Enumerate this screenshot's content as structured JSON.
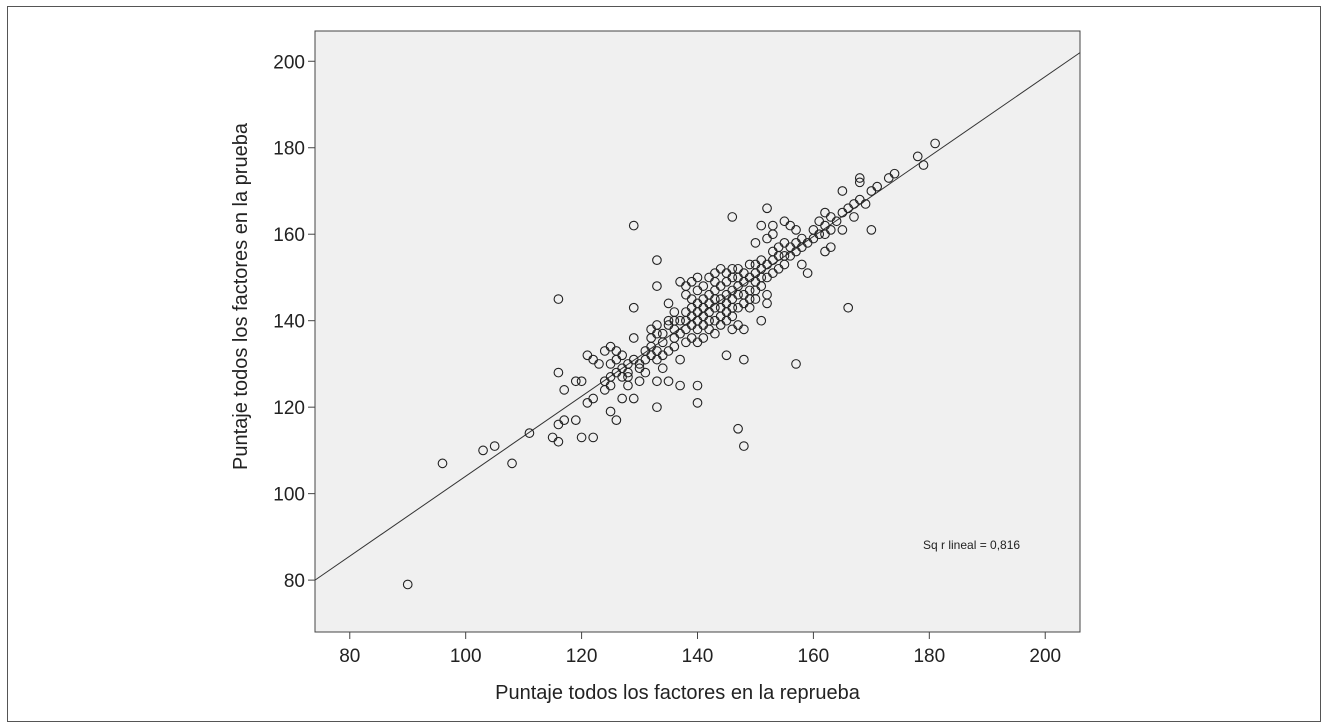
{
  "chart_data": {
    "type": "scatter",
    "title": "",
    "xlabel": "Puntaje todos los factores en la reprueba",
    "ylabel": "Puntaje todos los factores en la prueba",
    "xlim": [
      74,
      206
    ],
    "ylim": [
      68,
      207
    ],
    "x_ticks": [
      80,
      100,
      120,
      140,
      160,
      180,
      200
    ],
    "y_ticks": [
      80,
      100,
      120,
      140,
      160,
      180,
      200
    ],
    "grid": false,
    "plot_background": "#f0f0f0",
    "marker": "open-circle",
    "marker_color": "#222222",
    "fit_line": {
      "type": "linear",
      "x": [
        74,
        206
      ],
      "y": [
        80,
        202
      ]
    },
    "annotation": "Sq r lineal = 0,816",
    "points": [
      [
        90,
        79
      ],
      [
        96,
        107
      ],
      [
        103,
        110
      ],
      [
        105,
        111
      ],
      [
        108,
        107
      ],
      [
        111,
        114
      ],
      [
        115,
        113
      ],
      [
        116,
        112
      ],
      [
        116,
        116
      ],
      [
        116,
        128
      ],
      [
        116,
        145
      ],
      [
        117,
        124
      ],
      [
        117,
        117
      ],
      [
        119,
        117
      ],
      [
        119,
        126
      ],
      [
        120,
        126
      ],
      [
        120,
        113
      ],
      [
        121,
        121
      ],
      [
        121,
        132
      ],
      [
        122,
        113
      ],
      [
        122,
        122
      ],
      [
        122,
        131
      ],
      [
        123,
        130
      ],
      [
        124,
        124
      ],
      [
        124,
        126
      ],
      [
        124,
        133
      ],
      [
        125,
        125
      ],
      [
        125,
        127
      ],
      [
        125,
        130
      ],
      [
        125,
        134
      ],
      [
        125,
        119
      ],
      [
        126,
        117
      ],
      [
        126,
        128
      ],
      [
        126,
        131
      ],
      [
        126,
        133
      ],
      [
        127,
        129
      ],
      [
        127,
        132
      ],
      [
        127,
        127
      ],
      [
        127,
        122
      ],
      [
        128,
        125
      ],
      [
        128,
        130
      ],
      [
        128,
        128
      ],
      [
        128,
        127
      ],
      [
        129,
        122
      ],
      [
        129,
        143
      ],
      [
        129,
        136
      ],
      [
        129,
        162
      ],
      [
        129,
        131
      ],
      [
        130,
        130
      ],
      [
        130,
        129
      ],
      [
        130,
        126
      ],
      [
        131,
        131
      ],
      [
        131,
        133
      ],
      [
        131,
        128
      ],
      [
        132,
        132
      ],
      [
        132,
        134
      ],
      [
        132,
        136
      ],
      [
        132,
        138
      ],
      [
        133,
        120
      ],
      [
        133,
        126
      ],
      [
        133,
        131
      ],
      [
        133,
        133
      ],
      [
        133,
        137
      ],
      [
        133,
        139
      ],
      [
        133,
        148
      ],
      [
        133,
        154
      ],
      [
        134,
        129
      ],
      [
        134,
        132
      ],
      [
        134,
        135
      ],
      [
        134,
        137
      ],
      [
        135,
        126
      ],
      [
        135,
        133
      ],
      [
        135,
        139
      ],
      [
        135,
        140
      ],
      [
        135,
        144
      ],
      [
        136,
        134
      ],
      [
        136,
        136
      ],
      [
        136,
        138
      ],
      [
        136,
        140
      ],
      [
        136,
        142
      ],
      [
        137,
        125
      ],
      [
        137,
        131
      ],
      [
        137,
        137
      ],
      [
        137,
        140
      ],
      [
        137,
        149
      ],
      [
        138,
        135
      ],
      [
        138,
        138
      ],
      [
        138,
        140
      ],
      [
        138,
        142
      ],
      [
        138,
        146
      ],
      [
        138,
        148
      ],
      [
        139,
        136
      ],
      [
        139,
        139
      ],
      [
        139,
        141
      ],
      [
        139,
        143
      ],
      [
        139,
        145
      ],
      [
        139,
        149
      ],
      [
        140,
        121
      ],
      [
        140,
        125
      ],
      [
        140,
        135
      ],
      [
        140,
        138
      ],
      [
        140,
        140
      ],
      [
        140,
        142
      ],
      [
        140,
        144
      ],
      [
        140,
        147
      ],
      [
        140,
        150
      ],
      [
        141,
        136
      ],
      [
        141,
        139
      ],
      [
        141,
        141
      ],
      [
        141,
        143
      ],
      [
        141,
        145
      ],
      [
        141,
        148
      ],
      [
        142,
        138
      ],
      [
        142,
        140
      ],
      [
        142,
        142
      ],
      [
        142,
        144
      ],
      [
        142,
        146
      ],
      [
        142,
        150
      ],
      [
        143,
        137
      ],
      [
        143,
        140
      ],
      [
        143,
        143
      ],
      [
        143,
        145
      ],
      [
        143,
        147
      ],
      [
        143,
        149
      ],
      [
        143,
        151
      ],
      [
        144,
        139
      ],
      [
        144,
        141
      ],
      [
        144,
        143
      ],
      [
        144,
        145
      ],
      [
        144,
        148
      ],
      [
        144,
        152
      ],
      [
        145,
        132
      ],
      [
        145,
        140
      ],
      [
        145,
        142
      ],
      [
        145,
        144
      ],
      [
        145,
        146
      ],
      [
        145,
        149
      ],
      [
        145,
        151
      ],
      [
        146,
        138
      ],
      [
        146,
        141
      ],
      [
        146,
        143
      ],
      [
        146,
        145
      ],
      [
        146,
        147
      ],
      [
        146,
        150
      ],
      [
        146,
        152
      ],
      [
        146,
        164
      ],
      [
        147,
        115
      ],
      [
        147,
        139
      ],
      [
        147,
        143
      ],
      [
        147,
        146
      ],
      [
        147,
        148
      ],
      [
        147,
        150
      ],
      [
        147,
        152
      ],
      [
        148,
        111
      ],
      [
        148,
        131
      ],
      [
        148,
        138
      ],
      [
        148,
        144
      ],
      [
        148,
        146
      ],
      [
        148,
        149
      ],
      [
        148,
        151
      ],
      [
        149,
        143
      ],
      [
        149,
        145
      ],
      [
        149,
        147
      ],
      [
        149,
        150
      ],
      [
        149,
        153
      ],
      [
        150,
        145
      ],
      [
        150,
        147
      ],
      [
        150,
        149
      ],
      [
        150,
        151
      ],
      [
        150,
        153
      ],
      [
        150,
        158
      ],
      [
        151,
        140
      ],
      [
        151,
        148
      ],
      [
        151,
        150
      ],
      [
        151,
        152
      ],
      [
        151,
        154
      ],
      [
        151,
        162
      ],
      [
        152,
        144
      ],
      [
        152,
        146
      ],
      [
        152,
        150
      ],
      [
        152,
        153
      ],
      [
        152,
        159
      ],
      [
        152,
        166
      ],
      [
        153,
        151
      ],
      [
        153,
        154
      ],
      [
        153,
        156
      ],
      [
        153,
        160
      ],
      [
        153,
        162
      ],
      [
        154,
        152
      ],
      [
        154,
        155
      ],
      [
        154,
        157
      ],
      [
        155,
        153
      ],
      [
        155,
        155
      ],
      [
        155,
        158
      ],
      [
        155,
        163
      ],
      [
        156,
        155
      ],
      [
        156,
        157
      ],
      [
        156,
        162
      ],
      [
        157,
        130
      ],
      [
        157,
        156
      ],
      [
        157,
        158
      ],
      [
        157,
        161
      ],
      [
        158,
        153
      ],
      [
        158,
        157
      ],
      [
        158,
        159
      ],
      [
        159,
        151
      ],
      [
        159,
        158
      ],
      [
        160,
        159
      ],
      [
        160,
        161
      ],
      [
        161,
        160
      ],
      [
        161,
        163
      ],
      [
        162,
        156
      ],
      [
        162,
        160
      ],
      [
        162,
        162
      ],
      [
        162,
        165
      ],
      [
        163,
        157
      ],
      [
        163,
        161
      ],
      [
        163,
        164
      ],
      [
        164,
        163
      ],
      [
        165,
        161
      ],
      [
        165,
        165
      ],
      [
        165,
        170
      ],
      [
        166,
        143
      ],
      [
        166,
        166
      ],
      [
        167,
        164
      ],
      [
        167,
        167
      ],
      [
        168,
        168
      ],
      [
        168,
        172
      ],
      [
        168,
        173
      ],
      [
        169,
        167
      ],
      [
        170,
        161
      ],
      [
        170,
        170
      ],
      [
        171,
        171
      ],
      [
        173,
        173
      ],
      [
        174,
        174
      ],
      [
        178,
        178
      ],
      [
        179,
        176
      ],
      [
        181,
        181
      ]
    ]
  }
}
